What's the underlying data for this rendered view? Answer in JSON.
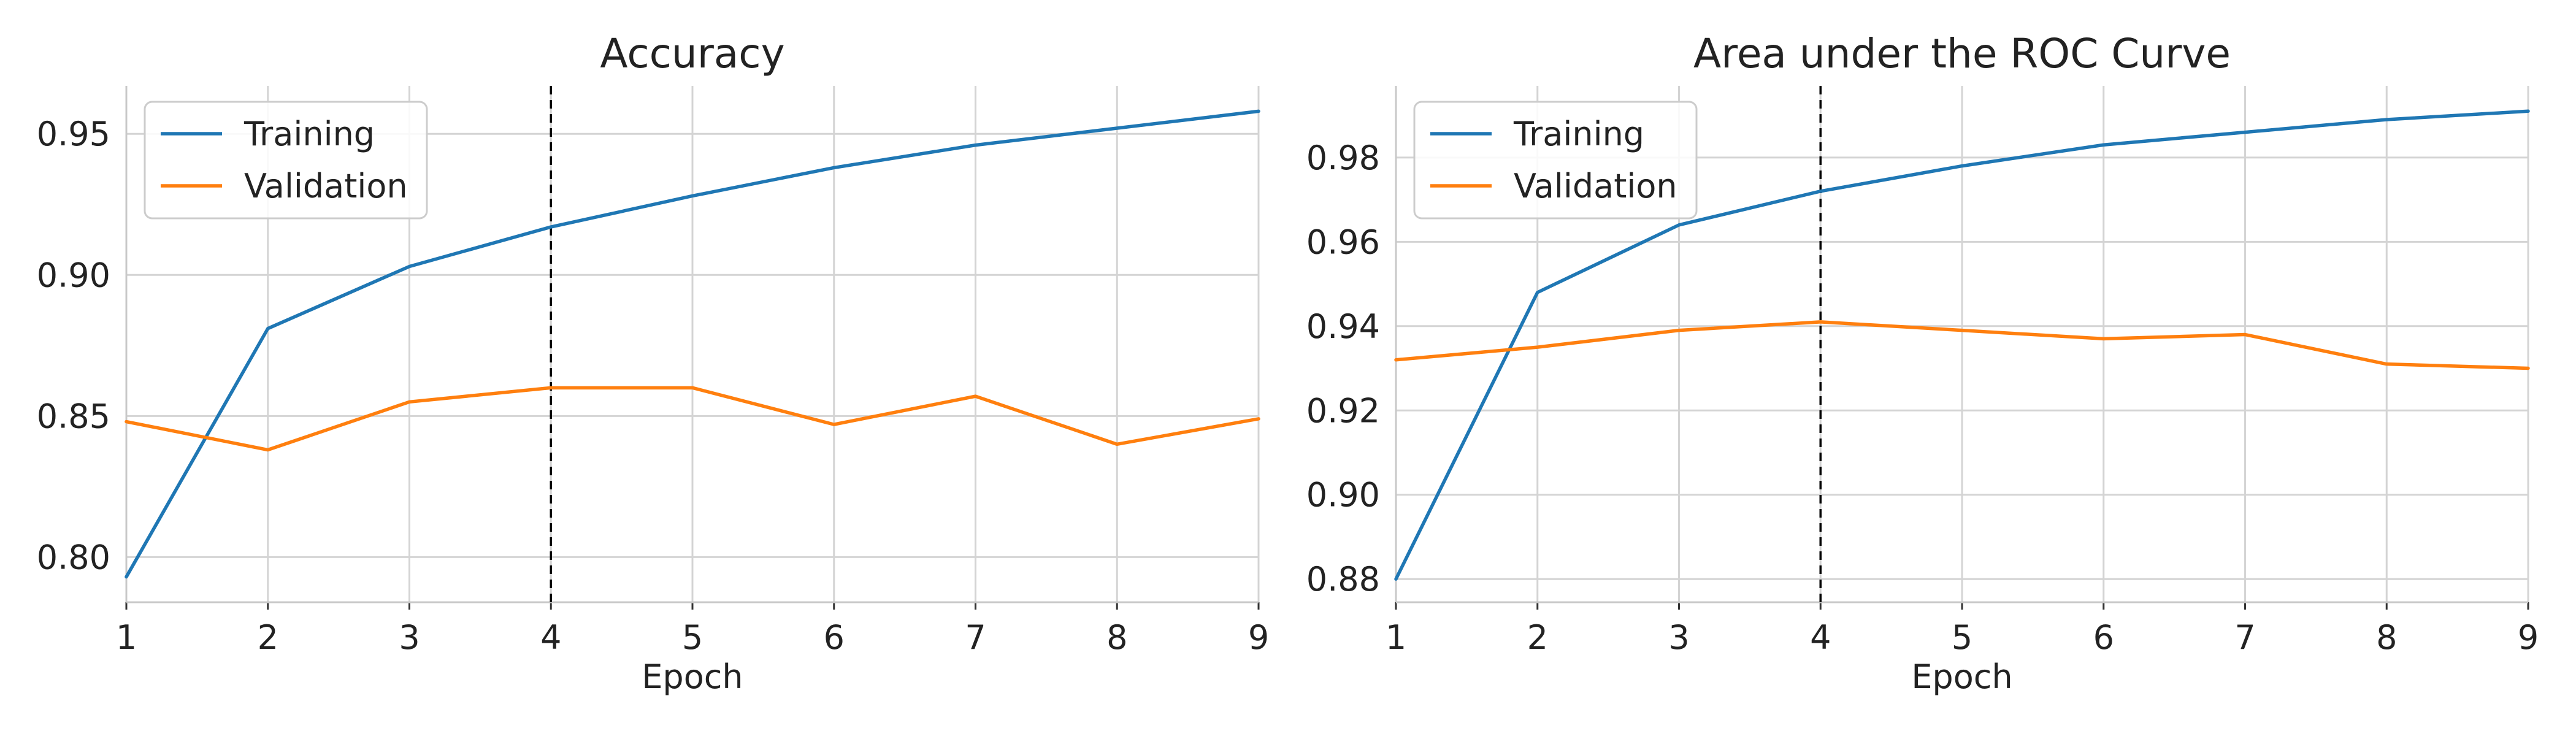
{
  "chart_data": [
    {
      "type": "line",
      "title": "Accuracy",
      "xlabel": "Epoch",
      "ylabel": "",
      "x": [
        1,
        2,
        3,
        4,
        5,
        6,
        7,
        8,
        9
      ],
      "xlim": [
        1,
        9
      ],
      "ylim": [
        0.784,
        0.967
      ],
      "xticks": [
        "1",
        "2",
        "3",
        "4",
        "5",
        "6",
        "7",
        "8",
        "9"
      ],
      "yticks": [
        "0.80",
        "0.85",
        "0.90",
        "0.95"
      ],
      "grid": true,
      "legend_position": "top-left",
      "vertical_marker": 4,
      "series": [
        {
          "name": "Training",
          "color": "#1f77b4",
          "values": [
            0.793,
            0.881,
            0.903,
            0.917,
            0.928,
            0.938,
            0.946,
            0.952,
            0.958
          ]
        },
        {
          "name": "Validation",
          "color": "#ff7f0e",
          "values": [
            0.848,
            0.838,
            0.855,
            0.86,
            0.86,
            0.847,
            0.857,
            0.84,
            0.849
          ]
        }
      ]
    },
    {
      "type": "line",
      "title": "Area under the ROC Curve",
      "xlabel": "Epoch",
      "ylabel": "",
      "x": [
        1,
        2,
        3,
        4,
        5,
        6,
        7,
        8,
        9
      ],
      "xlim": [
        1,
        9
      ],
      "ylim": [
        0.8745,
        0.997
      ],
      "xticks": [
        "1",
        "2",
        "3",
        "4",
        "5",
        "6",
        "7",
        "8",
        "9"
      ],
      "yticks": [
        "0.88",
        "0.90",
        "0.92",
        "0.94",
        "0.96",
        "0.98"
      ],
      "grid": true,
      "legend_position": "top-left",
      "vertical_marker": 4,
      "series": [
        {
          "name": "Training",
          "color": "#1f77b4",
          "values": [
            0.88,
            0.948,
            0.964,
            0.972,
            0.978,
            0.983,
            0.986,
            0.989,
            0.991
          ]
        },
        {
          "name": "Validation",
          "color": "#ff7f0e",
          "values": [
            0.932,
            0.935,
            0.939,
            0.941,
            0.939,
            0.937,
            0.938,
            0.931,
            0.93
          ]
        }
      ]
    }
  ]
}
